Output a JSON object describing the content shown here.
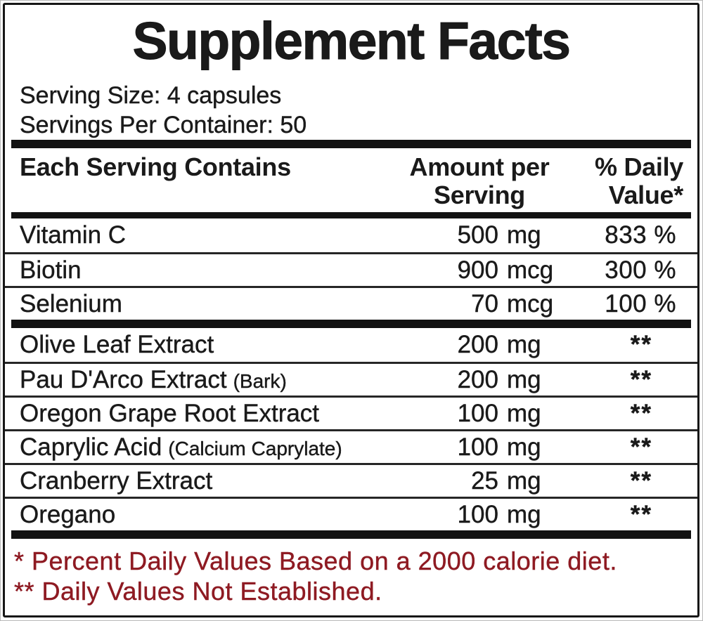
{
  "label": {
    "title": "Supplement Facts",
    "serving_size": "Serving Size: 4 capsules",
    "servings_per_container": "Servings Per Container: 50",
    "header": {
      "col1": "Each Serving Contains",
      "col2_line1": "Amount per",
      "col2_line2": "Serving",
      "col3_line1": "% Daily",
      "col3_line2": "Value*"
    },
    "rows": [
      {
        "name": "Vitamin C",
        "note": "",
        "amount": "500",
        "unit": "mg",
        "dv": "833 %"
      },
      {
        "name": "Biotin",
        "note": "",
        "amount": "900",
        "unit": "mcg",
        "dv": "300 %"
      },
      {
        "name": "Selenium",
        "note": "",
        "amount": "70",
        "unit": "mcg",
        "dv": "100 %"
      },
      {
        "name": "Olive Leaf Extract",
        "note": "",
        "amount": "200",
        "unit": "mg",
        "dv": "**"
      },
      {
        "name": "Pau D'Arco Extract",
        "note": "(Bark)",
        "amount": "200",
        "unit": "mg",
        "dv": "**"
      },
      {
        "name": "Oregon Grape Root Extract",
        "note": "",
        "amount": "100",
        "unit": "mg",
        "dv": "**"
      },
      {
        "name": "Caprylic Acid",
        "note": "(Calcium Caprylate)",
        "amount": "100",
        "unit": "mg",
        "dv": "**"
      },
      {
        "name": "Cranberry Extract",
        "note": "",
        "amount": "25",
        "unit": "mg",
        "dv": "**"
      },
      {
        "name": "Oregano",
        "note": "",
        "amount": "100",
        "unit": "mg",
        "dv": "**"
      }
    ],
    "footnotes": {
      "line1": "* Percent Daily Values Based on a 2000 calorie diet.",
      "line2": "** Daily Values Not Established."
    },
    "colors": {
      "text": "#1a1a1a",
      "footnote_red": "#8e1a22",
      "rule_black": "#121212",
      "background": "#ffffff"
    }
  }
}
